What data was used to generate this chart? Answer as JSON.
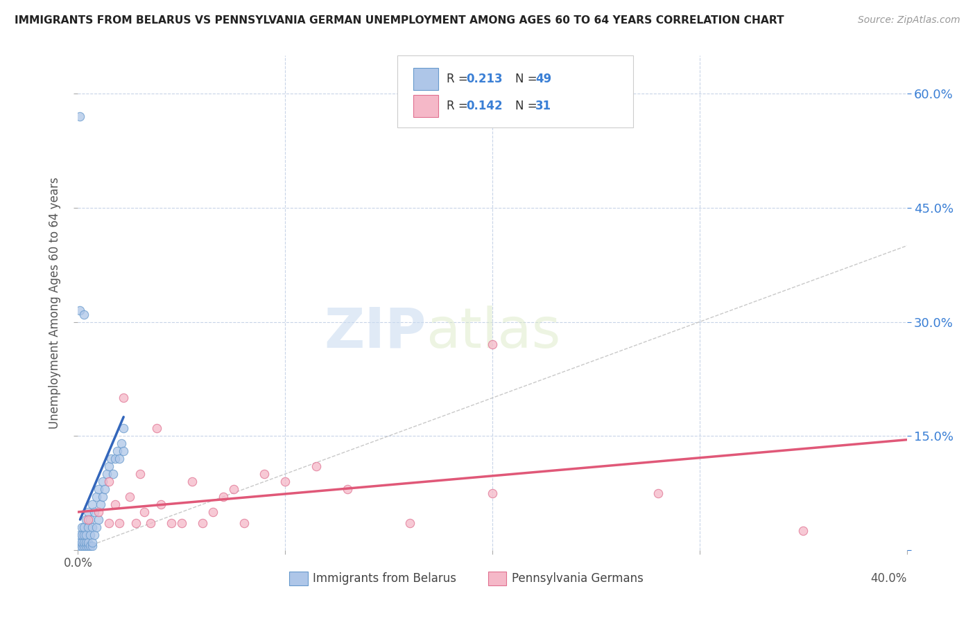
{
  "title": "IMMIGRANTS FROM BELARUS VS PENNSYLVANIA GERMAN UNEMPLOYMENT AMONG AGES 60 TO 64 YEARS CORRELATION CHART",
  "source": "Source: ZipAtlas.com",
  "ylabel": "Unemployment Among Ages 60 to 64 years",
  "xlim": [
    0,
    0.4
  ],
  "ylim": [
    0,
    0.65
  ],
  "ytick_values": [
    0,
    0.15,
    0.3,
    0.45,
    0.6
  ],
  "xtick_values": [
    0,
    0.1,
    0.2,
    0.3,
    0.4
  ],
  "series1_label": "Immigrants from Belarus",
  "series2_label": "Pennsylvania Germans",
  "series1_color": "#aec6e8",
  "series2_color": "#f5b8c8",
  "series1_edge": "#6699cc",
  "series2_edge": "#e07090",
  "trendline1_color": "#3366bb",
  "trendline2_color": "#e05878",
  "trendline1_x": [
    0.001,
    0.022
  ],
  "trendline1_y": [
    0.04,
    0.175
  ],
  "trendline2_x": [
    0.0,
    0.4
  ],
  "trendline2_y": [
    0.05,
    0.145
  ],
  "watermark_zip": "ZIP",
  "watermark_atlas": "atlas",
  "background_color": "#ffffff",
  "scatter1_x": [
    0.001,
    0.001,
    0.001,
    0.002,
    0.002,
    0.002,
    0.002,
    0.003,
    0.003,
    0.003,
    0.003,
    0.004,
    0.004,
    0.004,
    0.004,
    0.005,
    0.005,
    0.005,
    0.005,
    0.006,
    0.006,
    0.006,
    0.007,
    0.007,
    0.007,
    0.007,
    0.008,
    0.008,
    0.009,
    0.009,
    0.01,
    0.01,
    0.011,
    0.012,
    0.012,
    0.013,
    0.014,
    0.015,
    0.016,
    0.017,
    0.018,
    0.019,
    0.02,
    0.021,
    0.022,
    0.022,
    0.001,
    0.003,
    0.001
  ],
  "scatter1_y": [
    0.005,
    0.01,
    0.02,
    0.005,
    0.01,
    0.02,
    0.03,
    0.005,
    0.01,
    0.02,
    0.03,
    0.005,
    0.01,
    0.02,
    0.04,
    0.005,
    0.01,
    0.03,
    0.05,
    0.005,
    0.02,
    0.04,
    0.005,
    0.01,
    0.03,
    0.06,
    0.02,
    0.05,
    0.03,
    0.07,
    0.04,
    0.08,
    0.06,
    0.07,
    0.09,
    0.08,
    0.1,
    0.11,
    0.12,
    0.1,
    0.12,
    0.13,
    0.12,
    0.14,
    0.13,
    0.16,
    0.315,
    0.31,
    0.57
  ],
  "scatter2_x": [
    0.005,
    0.01,
    0.015,
    0.015,
    0.018,
    0.02,
    0.022,
    0.025,
    0.028,
    0.03,
    0.032,
    0.035,
    0.038,
    0.04,
    0.045,
    0.05,
    0.055,
    0.06,
    0.065,
    0.07,
    0.075,
    0.08,
    0.09,
    0.1,
    0.115,
    0.13,
    0.16,
    0.2,
    0.28,
    0.35,
    0.2
  ],
  "scatter2_y": [
    0.04,
    0.05,
    0.035,
    0.09,
    0.06,
    0.035,
    0.2,
    0.07,
    0.035,
    0.1,
    0.05,
    0.035,
    0.16,
    0.06,
    0.035,
    0.035,
    0.09,
    0.035,
    0.05,
    0.07,
    0.08,
    0.035,
    0.1,
    0.09,
    0.11,
    0.08,
    0.035,
    0.075,
    0.075,
    0.025,
    0.27
  ]
}
